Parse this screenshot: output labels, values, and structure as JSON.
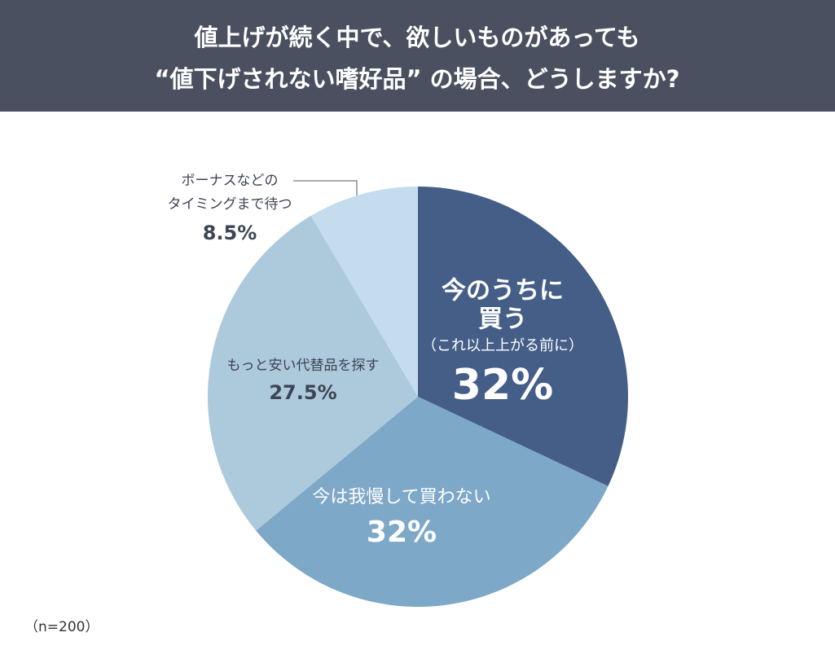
{
  "chart_data": {
    "type": "pie",
    "title": [
      "値上げが続く中で、欲しいものがあっても",
      "“値下げされない嗜好品” の場合、どうしますか?"
    ],
    "categories": [
      [
        "今のうちに",
        "買う",
        "（これ以上上がる前に）"
      ],
      [
        "今は我慢して買わない"
      ],
      [
        "もっと安い代替品を探す"
      ],
      [
        "ボーナスなどの",
        "タイミングまで待つ"
      ]
    ],
    "values": [
      32,
      32,
      27.5,
      8.5
    ],
    "value_labels": [
      "32%",
      "32%",
      "27.5%",
      "8.5%"
    ],
    "colors": [
      "#445e87",
      "#7ea8c8",
      "#adc9dc",
      "#c5dcee"
    ],
    "note": "（n=200）"
  }
}
